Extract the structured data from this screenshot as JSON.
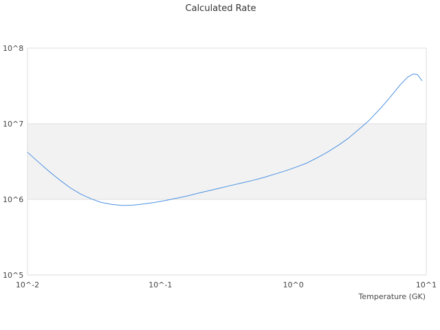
{
  "chart_data": {
    "type": "line",
    "title": "Calculated Rate",
    "xlabel": "Temperature (GK)",
    "ylabel": "",
    "x_scale": "log",
    "y_scale": "log",
    "xlim": [
      0.01,
      10
    ],
    "ylim": [
      100000,
      100000000
    ],
    "x_ticks": [
      {
        "value": 0.01,
        "label": "10^-2"
      },
      {
        "value": 0.1,
        "label": "10^-1"
      },
      {
        "value": 1,
        "label": "10^0"
      },
      {
        "value": 10,
        "label": "10^1"
      }
    ],
    "y_ticks": [
      {
        "value": 100000,
        "label": "10^5"
      },
      {
        "value": 1000000,
        "label": "10^6"
      },
      {
        "value": 10000000,
        "label": "10^7"
      },
      {
        "value": 100000000,
        "label": "10^8"
      }
    ],
    "shaded_band": [
      1000000,
      10000000
    ],
    "grid": true,
    "line_color": "#4a90e2",
    "band_color": "#f2f2f2",
    "series": [
      {
        "x": [
          0.01,
          0.012,
          0.0145,
          0.0175,
          0.021,
          0.025,
          0.03,
          0.036,
          0.043,
          0.052,
          0.062,
          0.075,
          0.09,
          0.11,
          0.13,
          0.16,
          0.19,
          0.23,
          0.28,
          0.34,
          0.41,
          0.5,
          0.6,
          0.72,
          0.87,
          1.05,
          1.25,
          1.5,
          1.8,
          2.2,
          2.6,
          3.1,
          3.7,
          4.5,
          5.3,
          6.4,
          7.2,
          8.0,
          8.6,
          9.3
        ],
        "y": [
          4200000,
          3150000,
          2350000,
          1800000,
          1420000,
          1180000,
          1020000,
          910000,
          860000,
          830000,
          840000,
          870000,
          910000,
          970000,
          1030000,
          1110000,
          1200000,
          1300000,
          1410000,
          1530000,
          1650000,
          1790000,
          1950000,
          2150000,
          2380000,
          2670000,
          3000000,
          3520000,
          4200000,
          5250000,
          6450000,
          8400000,
          11000000,
          15800000,
          22000000,
          33000000,
          41000000,
          45500000,
          44500000,
          37000000
        ]
      }
    ]
  }
}
